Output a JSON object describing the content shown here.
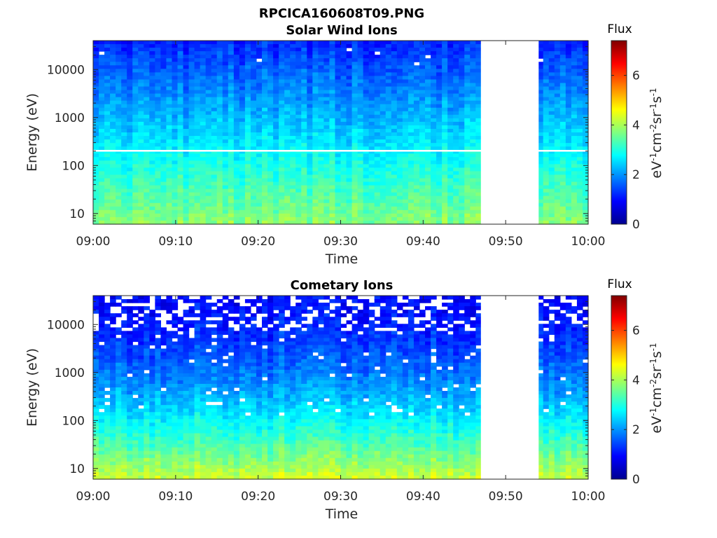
{
  "title": "RPCICA160608T09.PNG",
  "chart_data": [
    {
      "type": "heatmap",
      "title": "Solar Wind Ions",
      "xlabel": "Time",
      "ylabel": "Energy (eV)",
      "x_ticks": [
        "09:00",
        "09:10",
        "09:20",
        "09:30",
        "09:40",
        "09:50",
        "10:00"
      ],
      "y_scale": "log",
      "y_ticks": [
        10,
        100,
        1000,
        10000
      ],
      "y_tick_labels": [
        "10",
        "100",
        "1000",
        "10000"
      ],
      "ylim": [
        6,
        40000
      ],
      "data_gap": [
        "09:47",
        "09:54"
      ],
      "colorbar": {
        "label": "Flux",
        "units": "eV-1 cm-2 sr-1 s-1",
        "ticks": [
          "0",
          "2",
          "4",
          "6"
        ],
        "range": [
          0,
          7.4
        ],
        "colormap": "jet"
      }
    },
    {
      "type": "heatmap",
      "title": "Cometary Ions",
      "xlabel": "Time",
      "ylabel": "Energy (eV)",
      "x_ticks": [
        "09:00",
        "09:10",
        "09:20",
        "09:30",
        "09:40",
        "09:50",
        "10:00"
      ],
      "y_scale": "log",
      "y_ticks": [
        10,
        100,
        1000,
        10000
      ],
      "y_tick_labels": [
        "10",
        "100",
        "1000",
        "10000"
      ],
      "ylim": [
        6,
        40000
      ],
      "data_gap": [
        "09:47",
        "09:54"
      ],
      "colorbar": {
        "label": "Flux",
        "units": "eV-1 cm-2 sr-1 s-1",
        "ticks": [
          "0",
          "2",
          "4",
          "6"
        ],
        "range": [
          0,
          7.4
        ],
        "colormap": "jet"
      }
    }
  ]
}
